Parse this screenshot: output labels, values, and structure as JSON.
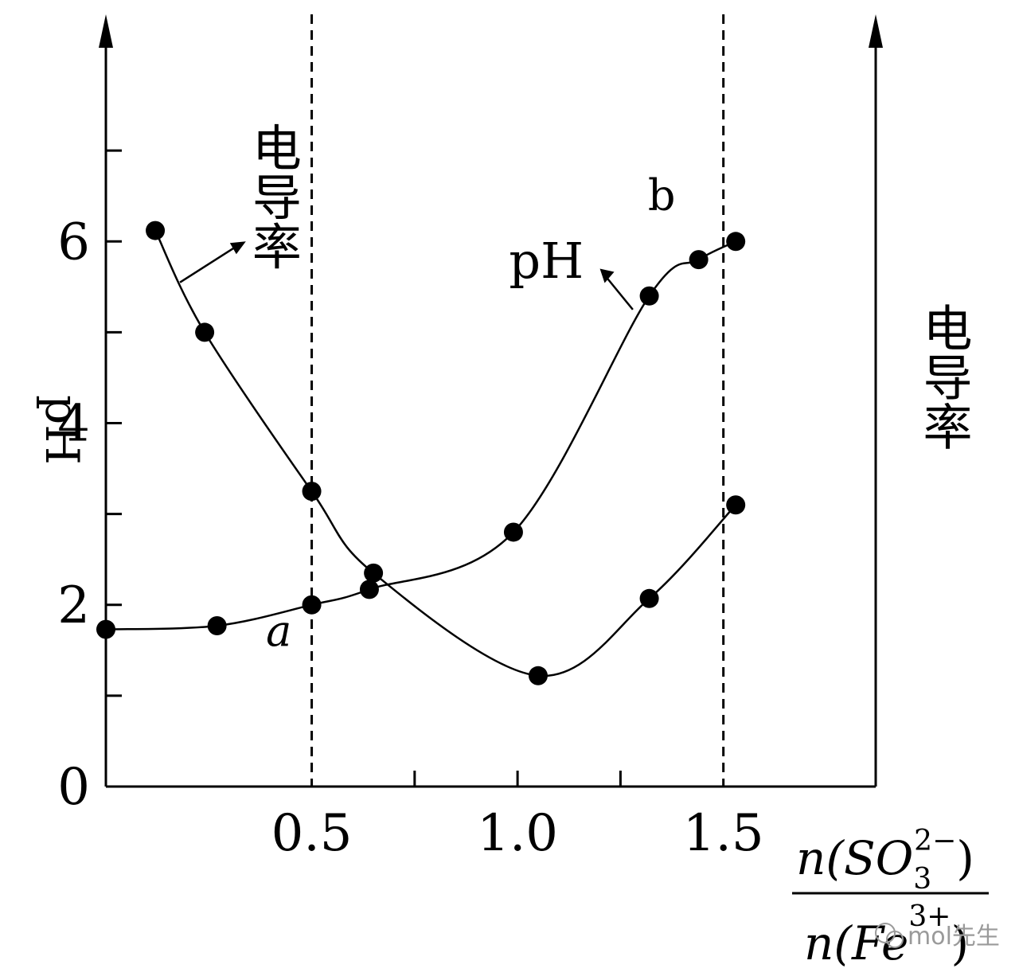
{
  "chart_data": {
    "type": "line",
    "y_axis_left": {
      "label": "pH",
      "ticks": [
        "0",
        "2",
        "4",
        "6"
      ],
      "tick_values": [
        0,
        2,
        4,
        6
      ],
      "minor_ticks": [
        1,
        3,
        5,
        7
      ],
      "ylim": [
        0,
        8.5
      ]
    },
    "y_axis_right": {
      "label": "电导率"
    },
    "x_axis": {
      "ticks": [
        "0.5",
        "1.0",
        "1.5"
      ],
      "tick_values": [
        0.5,
        1.0,
        1.5
      ],
      "minor_ticks": [
        0.75,
        1.25
      ],
      "xlim": [
        0,
        1.87
      ],
      "label_numerator_prefix": "n(SO",
      "label_numerator_sub": "3",
      "label_numerator_sup": "2−",
      "label_numerator_suffix": ")",
      "label_denominator_prefix": "n(Fe",
      "label_denominator_sup": "3+",
      "label_denominator_suffix": ")"
    },
    "reference_lines_x": [
      0.5,
      1.5
    ],
    "series": [
      {
        "name": "电导率",
        "annotation": "电导率",
        "x": [
          0.12,
          0.24,
          0.5,
          0.65,
          1.05,
          1.32,
          1.53
        ],
        "y": [
          6.12,
          5.0,
          3.25,
          2.35,
          1.22,
          2.07,
          3.1
        ]
      },
      {
        "name": "pH",
        "annotation": "pH",
        "x": [
          0.0,
          0.27,
          0.5,
          0.64,
          0.99,
          1.32,
          1.44,
          1.53
        ],
        "y": [
          1.73,
          1.77,
          2.0,
          2.17,
          2.8,
          5.4,
          5.8,
          6.0
        ]
      }
    ],
    "point_labels": [
      {
        "text": "a",
        "x": 0.42,
        "y": 1.55,
        "italic": true
      },
      {
        "text": "b",
        "x": 1.35,
        "y": 6.35,
        "italic": false
      }
    ]
  },
  "watermark": "mol先生"
}
